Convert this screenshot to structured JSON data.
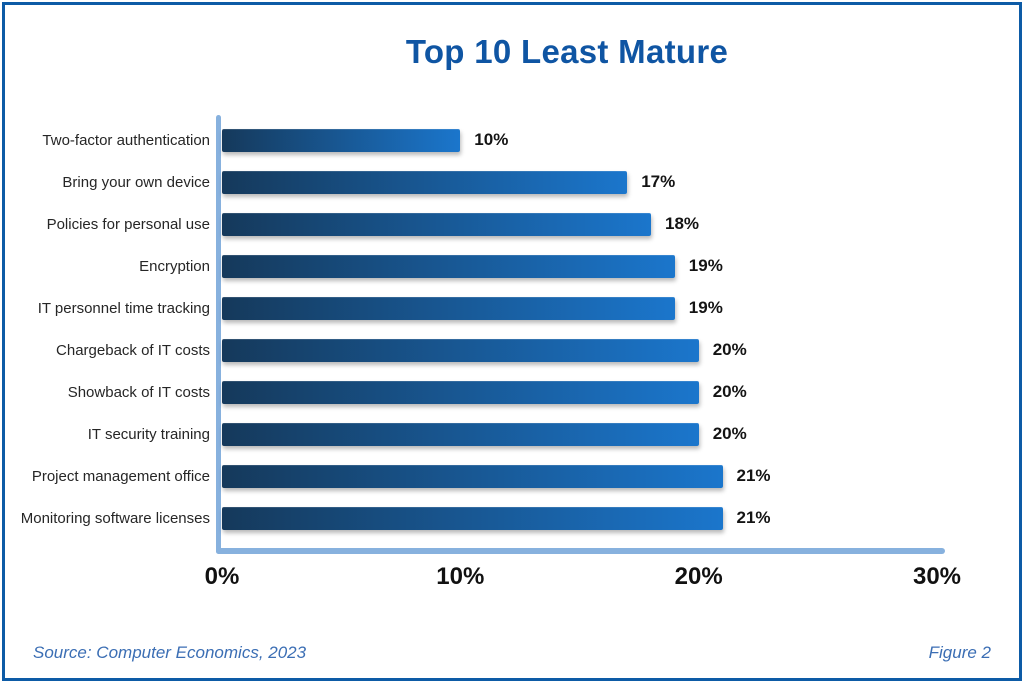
{
  "title": "Top 10 Least Mature",
  "chart_data": {
    "type": "bar",
    "orientation": "horizontal",
    "title": "Top 10 Least Mature",
    "categories": [
      "Two-factor authentication",
      "Bring your own device",
      "Policies for personal use",
      "Encryption",
      "IT personnel time tracking",
      "Chargeback of IT costs",
      "Showback of IT costs",
      "IT security training",
      "Project management office",
      "Monitoring software licenses"
    ],
    "values": [
      10,
      17,
      18,
      19,
      19,
      20,
      20,
      20,
      21,
      21
    ],
    "value_labels": [
      "10%",
      "17%",
      "18%",
      "19%",
      "19%",
      "20%",
      "20%",
      "20%",
      "21%",
      "21%"
    ],
    "x_ticks": [
      "0%",
      "10%",
      "20%",
      "30%"
    ],
    "xlim": [
      0,
      30
    ],
    "xlabel": "",
    "ylabel": "",
    "grid": false,
    "legend": "none",
    "bar_gradient": [
      "#15395b",
      "#1b76cc"
    ],
    "axis_color": "#87b1de"
  },
  "footer": {
    "source": "Source: Computer Economics, 2023",
    "figure": "Figure 2"
  },
  "colors": {
    "frame_border": "#0d5ba6",
    "title": "#0f55a3",
    "category_label": "#262626",
    "value_label": "#141414",
    "tick_label": "#111111",
    "footer_text": "#3b6eb4"
  }
}
